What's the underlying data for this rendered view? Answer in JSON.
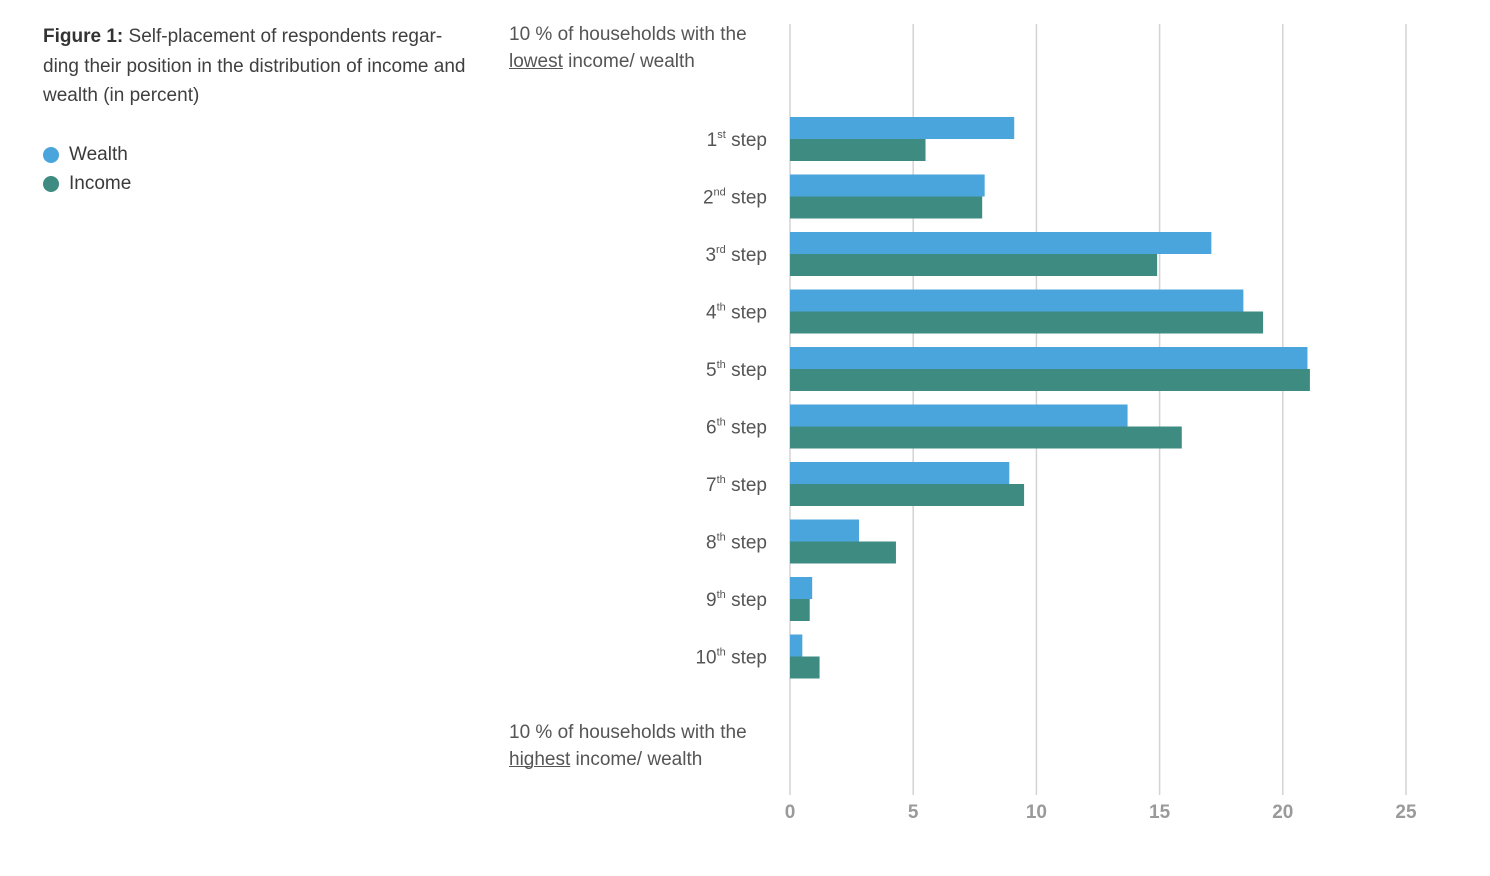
{
  "caption": {
    "label": "Figure 1:",
    "text": "Self-placement of respondents regar-ding their position in the distribution of income and wealth (in percent)"
  },
  "notes": {
    "top": {
      "pre": "10 % of households with the ",
      "em": "lowest",
      "post": " income/ wealth"
    },
    "bottom": {
      "pre": "10 % of households with the ",
      "em": "highest",
      "post": " income/ wealth"
    }
  },
  "colors": {
    "wealth": "#4aa5dc",
    "income": "#3e8b82",
    "grid": "#d3d3d3",
    "tick": "#9a9a9a"
  },
  "chart_data": {
    "type": "bar",
    "orientation": "horizontal",
    "title": "",
    "categories": [
      {
        "num": "1",
        "sup": "st",
        "word": "step"
      },
      {
        "num": "2",
        "sup": "nd",
        "word": "step"
      },
      {
        "num": "3",
        "sup": "rd",
        "word": "step"
      },
      {
        "num": "4",
        "sup": "th",
        "word": "step"
      },
      {
        "num": "5",
        "sup": "th",
        "word": "step"
      },
      {
        "num": "6",
        "sup": "th",
        "word": "step"
      },
      {
        "num": "7",
        "sup": "th",
        "word": "step"
      },
      {
        "num": "8",
        "sup": "th",
        "word": "step"
      },
      {
        "num": "9",
        "sup": "th",
        "word": "step"
      },
      {
        "num": "10",
        "sup": "th",
        "word": "step"
      }
    ],
    "series": [
      {
        "name": "Wealth",
        "color": "#4aa5dc",
        "values": [
          9.1,
          7.9,
          17.1,
          18.4,
          21.0,
          13.7,
          8.9,
          2.8,
          0.9,
          0.5
        ]
      },
      {
        "name": "Income",
        "color": "#3e8b82",
        "values": [
          5.5,
          7.8,
          14.9,
          19.2,
          21.1,
          15.9,
          9.5,
          4.3,
          0.8,
          1.2
        ]
      }
    ],
    "xlim": [
      0,
      25
    ],
    "xticks": [
      0,
      5,
      10,
      15,
      20,
      25
    ],
    "grid": true,
    "legend_position": "top-left"
  }
}
